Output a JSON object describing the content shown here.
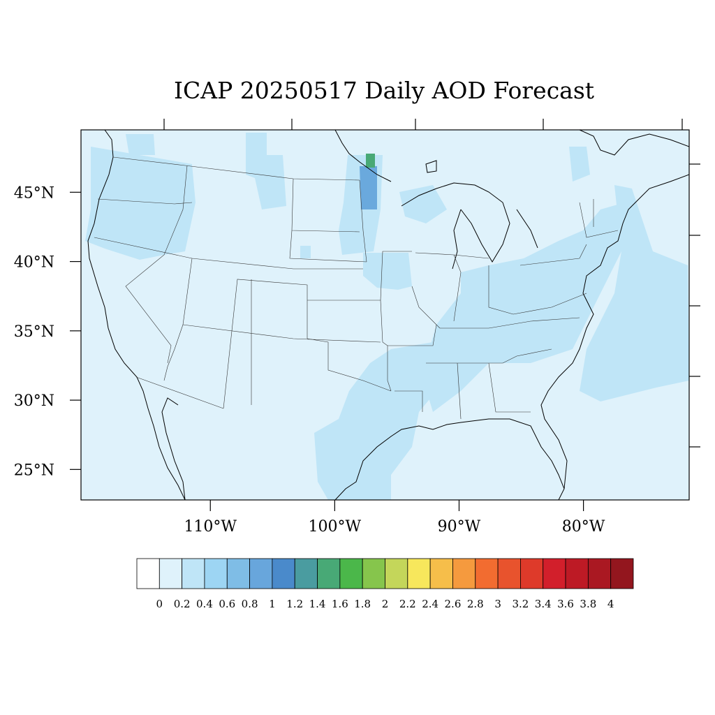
{
  "title": "ICAP 20250517 Daily AOD Forecast",
  "map": {
    "lon_range": [
      -120.4,
      -71.5
    ],
    "lat_range": [
      22.8,
      49.5
    ],
    "y_ticks": [
      {
        "lat": 45,
        "label": "45°N"
      },
      {
        "lat": 40,
        "label": "40°N"
      },
      {
        "lat": 35,
        "label": "35°N"
      },
      {
        "lat": 30,
        "label": "30°N"
      },
      {
        "lat": 25,
        "label": "25°N"
      }
    ],
    "x_ticks": [
      {
        "lon": -110,
        "label": "110°W"
      },
      {
        "lon": -100,
        "label": "100°W"
      },
      {
        "lon": -90,
        "label": "90°W"
      },
      {
        "lon": -80,
        "label": "80°W"
      }
    ],
    "background_color": "#dff2fb",
    "aod_regions": [
      {
        "name": "pacific-northwest",
        "aod": "0.2-0.4",
        "color": "#bfe5f7"
      },
      {
        "name": "northern-plains",
        "aod": "0.2-0.4",
        "color": "#bfe5f7"
      },
      {
        "name": "south-central",
        "aod": "0.2-0.4",
        "color": "#bfe5f7"
      },
      {
        "name": "southeast-midwest",
        "aod": "0.2-0.4",
        "color": "#bfe5f7"
      },
      {
        "name": "atlantic-coast",
        "aod": "0.2-0.4",
        "color": "#bfe5f7"
      },
      {
        "name": "red-river-valley",
        "aod": "0.6-1.2",
        "color": "#6aa9dd"
      },
      {
        "name": "red-river-peak",
        "aod": "1.4-1.6",
        "color": "#48a976"
      }
    ]
  },
  "colorbar": {
    "colors": [
      "#ffffff",
      "#dff2fb",
      "#bfe5f7",
      "#9dd5f3",
      "#7fbde6",
      "#68a6dc",
      "#4a8acb",
      "#4a9ca0",
      "#48a976",
      "#4bb74a",
      "#86c54c",
      "#c4d65a",
      "#f7e75c",
      "#f6be4a",
      "#f59a3e",
      "#f26c30",
      "#e8532d",
      "#de3a2a",
      "#d21f2b",
      "#bd1a25",
      "#aa1822",
      "#93161e"
    ],
    "labels": [
      "0",
      "0.2",
      "0.4",
      "0.6",
      "0.8",
      "1",
      "1.2",
      "1.4",
      "1.6",
      "1.8",
      "2",
      "2.2",
      "2.4",
      "2.6",
      "2.8",
      "3",
      "3.2",
      "3.4",
      "3.6",
      "3.8",
      "4"
    ]
  }
}
